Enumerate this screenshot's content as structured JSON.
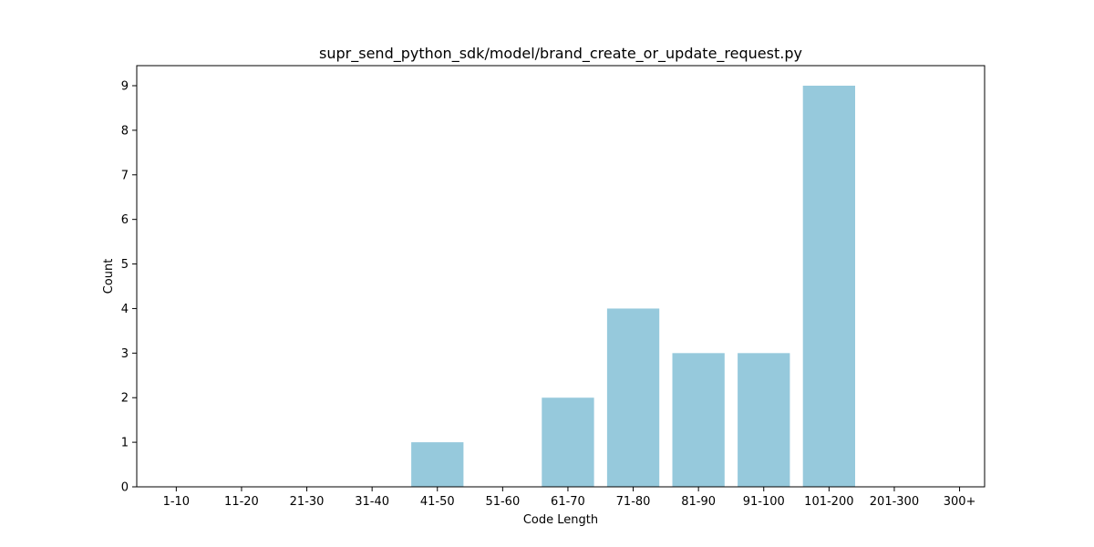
{
  "chart_data": {
    "type": "bar",
    "title": "supr_send_python_sdk/model/brand_create_or_update_request.py",
    "xlabel": "Code Length",
    "ylabel": "Count",
    "categories": [
      "1-10",
      "11-20",
      "21-30",
      "31-40",
      "41-50",
      "51-60",
      "61-70",
      "71-80",
      "81-90",
      "91-100",
      "101-200",
      "201-300",
      "300+"
    ],
    "values": [
      0,
      0,
      0,
      0,
      1,
      0,
      2,
      4,
      3,
      3,
      9,
      0,
      0
    ],
    "ylim": [
      0,
      9.45
    ],
    "yticks": [
      "0",
      "1",
      "2",
      "3",
      "4",
      "5",
      "6",
      "7",
      "8",
      "9"
    ],
    "bar_color": "#96c9dc",
    "grid": false,
    "legend": "none"
  }
}
